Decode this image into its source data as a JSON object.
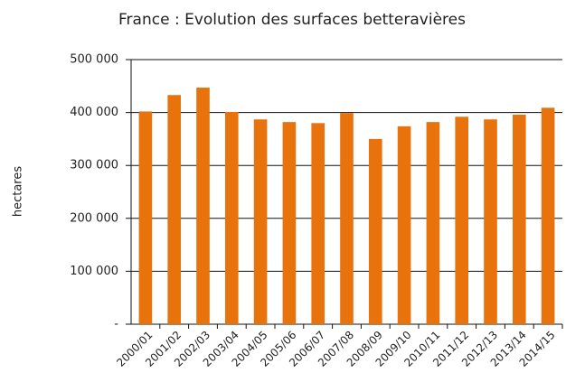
{
  "chart_data": {
    "type": "bar",
    "title": "France : Evolution des surfaces betteravières",
    "y_label": "hectares",
    "categories": [
      "2000/01",
      "2001/02",
      "2002/03",
      "2003/04",
      "2004/05",
      "2005/06",
      "2006/07",
      "2007/08",
      "2008/09",
      "2009/10",
      "2010/11",
      "2011/12",
      "2012/13",
      "2013/14",
      "2014/15"
    ],
    "values": [
      402000,
      433000,
      447000,
      401000,
      387000,
      382000,
      380000,
      399000,
      350000,
      374000,
      382000,
      392000,
      387000,
      396000,
      409000
    ],
    "color": "#e8720c",
    "ylim": [
      0,
      500000
    ],
    "yticks": [
      {
        "value": 0,
        "label": "-"
      },
      {
        "value": 100000,
        "label": "100 000"
      },
      {
        "value": 200000,
        "label": "200 000"
      },
      {
        "value": 300000,
        "label": "300 000"
      },
      {
        "value": 400000,
        "label": "400 000"
      },
      {
        "value": 500000,
        "label": "500 000"
      }
    ],
    "grid": true
  }
}
